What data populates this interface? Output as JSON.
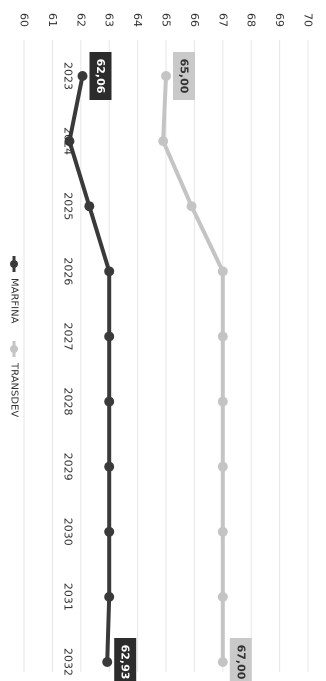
{
  "chart_data": {
    "type": "line",
    "orientation": "rotated-90-clockwise",
    "x": [
      "2023",
      "2024",
      "2025",
      "2026",
      "2027",
      "2028",
      "2029",
      "2030",
      "2031",
      "2032"
    ],
    "ylim": [
      60,
      70
    ],
    "yticks": [
      "60",
      "61",
      "62",
      "63",
      "64",
      "65",
      "66",
      "67",
      "68",
      "69",
      "70"
    ],
    "grid": true,
    "legend": "bottom",
    "series": [
      {
        "name": "MARFINA",
        "color": "#3a3a3a",
        "values": [
          62.06,
          61.6,
          62.3,
          63.0,
          63.0,
          63.0,
          63.0,
          63.0,
          63.0,
          62.93
        ],
        "labels": [
          {
            "index": 0,
            "text": "62,06"
          },
          {
            "index": 9,
            "text": "62,93"
          }
        ]
      },
      {
        "name": "TRANSDEV",
        "color": "#c4c4c4",
        "values": [
          65.0,
          64.9,
          65.9,
          67.0,
          67.0,
          67.0,
          67.0,
          67.0,
          67.0,
          67.0
        ],
        "labels": [
          {
            "index": 0,
            "text": "65,00"
          },
          {
            "index": 9,
            "text": "67,00"
          }
        ]
      }
    ]
  }
}
